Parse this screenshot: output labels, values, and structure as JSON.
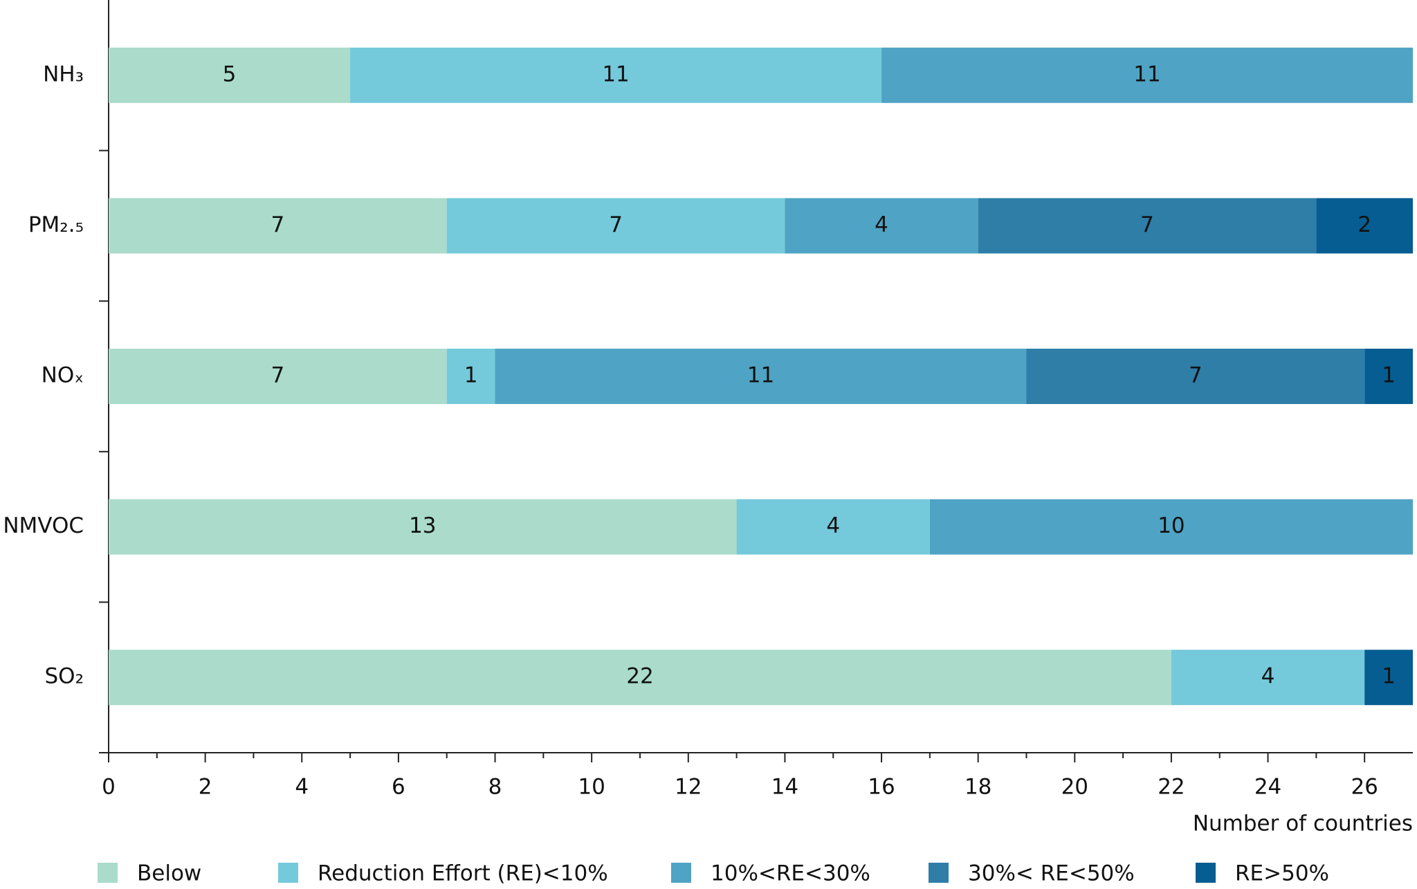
{
  "chart_data": {
    "type": "stacked-bar-horizontal",
    "categories": [
      "NH₃",
      "PM₂.₅",
      "NOₓ",
      "NMVOC",
      "SO₂"
    ],
    "series": [
      {
        "name": "Below",
        "color": "#aadbcb",
        "values": [
          5,
          7,
          7,
          13,
          22
        ]
      },
      {
        "name": "Reduction Effort (RE)<10%",
        "color": "#74c9db",
        "values": [
          11,
          7,
          1,
          4,
          4
        ]
      },
      {
        "name": "10%<RE<30%",
        "color": "#4fa3c4",
        "values": [
          11,
          4,
          11,
          10,
          null
        ]
      },
      {
        "name": "30%< RE<50%",
        "color": "#2e7ea8",
        "values": [
          null,
          7,
          7,
          null,
          null
        ]
      },
      {
        "name": "RE>50%",
        "color": "#065d91",
        "values": [
          null,
          2,
          1,
          null,
          1
        ]
      }
    ],
    "x_label": "Number of countries",
    "xlim": [
      0,
      27
    ],
    "xticks": [
      0,
      2,
      4,
      6,
      8,
      10,
      12,
      14,
      16,
      18,
      20,
      22,
      24,
      26
    ],
    "xticks_minor": [
      1,
      3,
      5,
      7,
      9,
      11,
      13,
      15,
      17,
      19,
      21,
      23,
      25
    ],
    "legend": "bottom"
  }
}
